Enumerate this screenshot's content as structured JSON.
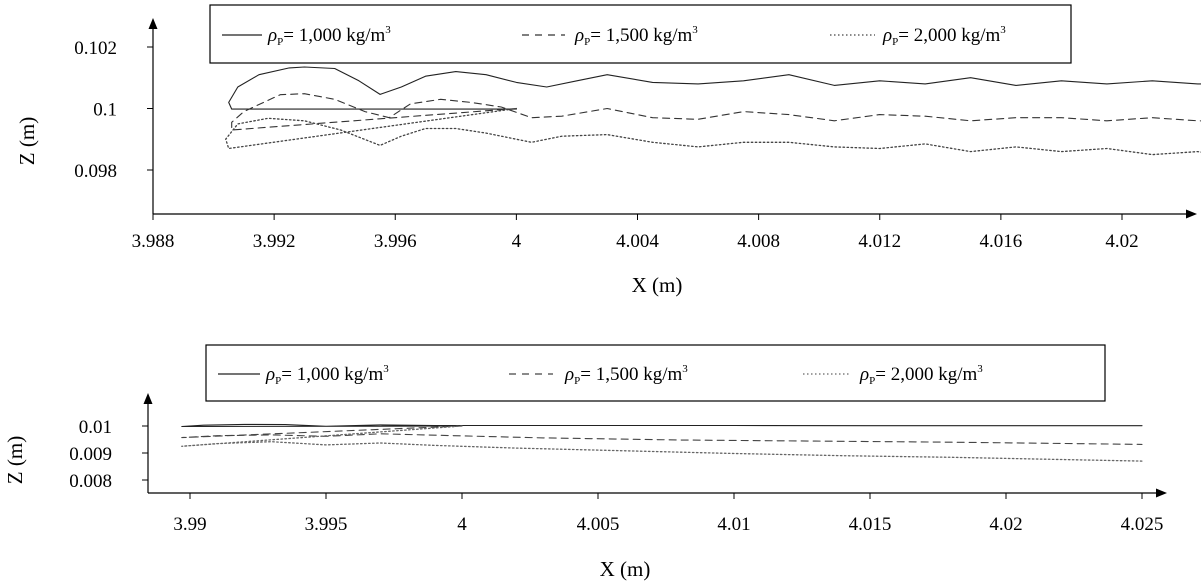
{
  "chart_data": [
    {
      "type": "line",
      "xlabel": "X  (m)",
      "ylabel": "Z  (m)",
      "xlim": [
        3.988,
        4.0245
      ],
      "ylim": [
        0.09745,
        0.10305
      ],
      "x_ticks": [
        3.988,
        3.992,
        3.996,
        4.0,
        4.004,
        4.008,
        4.012,
        4.016,
        4.02
      ],
      "x_tick_labels": [
        "3.988",
        "3.992",
        "3.996",
        "4",
        "4.004",
        "4.008",
        "4.012",
        "4.016",
        "4.02"
      ],
      "y_ticks": [
        0.098,
        0.1,
        0.102
      ],
      "y_tick_labels": [
        "0.098",
        "0.1",
        "0.102"
      ],
      "legend_position": "top",
      "grid": false,
      "series": [
        {
          "legend_prefix": "ρ",
          "legend_sub": "P",
          "legend_value": "= 1,000 kg/m",
          "legend_sup": "3",
          "line_style": "solid",
          "color": "#222222",
          "x": [
            4.0,
            3.9906,
            3.9905,
            3.9908,
            3.9915,
            3.9925,
            3.993,
            3.994,
            3.9948,
            3.9955,
            3.9962,
            3.997,
            3.998,
            3.999,
            4.0,
            4.001,
            4.002,
            4.003,
            4.0045,
            4.006,
            4.0075,
            4.009,
            4.0105,
            4.012,
            4.0135,
            4.015,
            4.0165,
            4.018,
            4.0195,
            4.021,
            4.0225,
            4.0245
          ],
          "y": [
            0.09998,
            0.09998,
            0.1002,
            0.1007,
            0.1011,
            0.10132,
            0.10135,
            0.1013,
            0.1009,
            0.10046,
            0.1007,
            0.10105,
            0.1012,
            0.1011,
            0.10085,
            0.1007,
            0.1009,
            0.1011,
            0.10085,
            0.1008,
            0.1009,
            0.1011,
            0.10075,
            0.1009,
            0.1008,
            0.101,
            0.10075,
            0.1009,
            0.1008,
            0.1009,
            0.1008,
            0.1008
          ]
        },
        {
          "legend_prefix": "ρ",
          "legend_sub": "P",
          "legend_value": "= 1,500 kg/m",
          "legend_sup": "3",
          "line_style": "dashed",
          "color": "#333333",
          "x": [
            4.0,
            3.9906,
            3.9906,
            3.991,
            3.9922,
            3.993,
            3.994,
            3.995,
            3.9958,
            3.9965,
            3.9975,
            3.9985,
            3.9995,
            4.0005,
            4.0015,
            4.003,
            4.0045,
            4.006,
            4.0075,
            4.009,
            4.0105,
            4.012,
            4.0135,
            4.015,
            4.0165,
            4.018,
            4.0195,
            4.021,
            4.0225,
            4.0245
          ],
          "y": [
            0.1,
            0.0993,
            0.09955,
            0.0999,
            0.10045,
            0.10048,
            0.1003,
            0.0999,
            0.0997,
            0.10015,
            0.1003,
            0.1002,
            0.10005,
            0.0997,
            0.09975,
            0.1,
            0.0997,
            0.09965,
            0.0999,
            0.0998,
            0.0996,
            0.0998,
            0.09975,
            0.0996,
            0.0997,
            0.0997,
            0.0996,
            0.0997,
            0.0996,
            0.09955
          ]
        },
        {
          "legend_prefix": "ρ",
          "legend_sub": "P",
          "legend_value": "= 2,000 kg/m",
          "legend_sup": "3",
          "line_style": "dotted",
          "color": "#444444",
          "x": [
            4.0,
            3.9905,
            3.9904,
            3.9908,
            3.9918,
            3.993,
            3.9942,
            3.9955,
            3.9962,
            3.997,
            3.998,
            3.999,
            4.0005,
            4.0015,
            4.003,
            4.0045,
            4.006,
            4.0075,
            4.009,
            4.0105,
            4.012,
            4.0135,
            4.015,
            4.0165,
            4.018,
            4.0195,
            4.021,
            4.0225,
            4.0245
          ],
          "y": [
            0.1,
            0.0987,
            0.099,
            0.0995,
            0.09968,
            0.0996,
            0.0993,
            0.0988,
            0.0991,
            0.09935,
            0.09935,
            0.0992,
            0.0989,
            0.0991,
            0.09915,
            0.0989,
            0.09875,
            0.0989,
            0.0989,
            0.09875,
            0.0987,
            0.09885,
            0.0986,
            0.09875,
            0.0986,
            0.0987,
            0.0985,
            0.0986,
            0.0983
          ]
        }
      ]
    },
    {
      "type": "line",
      "xlabel": "X  (m)",
      "ylabel": "Z  (m)",
      "xlim": [
        3.9885,
        4.0255
      ],
      "ylim": [
        0.0077,
        0.0106
      ],
      "x_ticks": [
        3.99,
        3.995,
        4.0,
        4.005,
        4.01,
        4.015,
        4.02,
        4.025
      ],
      "x_tick_labels": [
        "3.99",
        "3.995",
        "4",
        "4.005",
        "4.01",
        "4.015",
        "4.02",
        "4.025"
      ],
      "y_ticks": [
        0.008,
        0.009,
        0.01
      ],
      "y_tick_labels": [
        "0.008",
        "0.009",
        "0.01"
      ],
      "legend_position": "top",
      "grid": false,
      "series": [
        {
          "legend_prefix": "ρ",
          "legend_sub": "P",
          "legend_value": "= 1,000 kg/m",
          "legend_sup": "3",
          "line_style": "solid",
          "color": "#222222",
          "x": [
            4.0,
            3.9897,
            3.9905,
            3.992,
            3.9935,
            3.995,
            3.997,
            3.999,
            4.001,
            4.005,
            4.01,
            4.015,
            4.02,
            4.025
          ],
          "y": [
            0.01,
            0.00998,
            0.01003,
            0.01006,
            0.01005,
            0.00999,
            0.01004,
            0.01002,
            0.01002,
            0.01002,
            0.01002,
            0.01001,
            0.01001,
            0.01001
          ]
        },
        {
          "legend_prefix": "ρ",
          "legend_sub": "P",
          "legend_value": "= 1,500 kg/m",
          "legend_sup": "3",
          "line_style": "dashed",
          "color": "#444444",
          "x": [
            4.0,
            3.9897,
            3.991,
            3.993,
            3.995,
            3.997,
            3.999,
            4.003,
            4.008,
            4.013,
            4.018,
            4.025
          ],
          "y": [
            0.01,
            0.00957,
            0.00964,
            0.00967,
            0.00962,
            0.00971,
            0.00966,
            0.00956,
            0.00948,
            0.00944,
            0.0094,
            0.00932
          ]
        },
        {
          "legend_prefix": "ρ",
          "legend_sub": "P",
          "legend_value": "= 2,000 kg/m",
          "legend_sup": "3",
          "line_style": "dotted",
          "color": "#666666",
          "x": [
            4.0,
            3.9897,
            3.991,
            3.993,
            3.995,
            3.997,
            3.999,
            4.002,
            4.006,
            4.01,
            4.014,
            4.018,
            4.022,
            4.025
          ],
          "y": [
            0.01,
            0.00925,
            0.00935,
            0.00942,
            0.0093,
            0.00937,
            0.00928,
            0.00918,
            0.00908,
            0.00898,
            0.0089,
            0.00884,
            0.00876,
            0.0087
          ]
        }
      ]
    }
  ]
}
